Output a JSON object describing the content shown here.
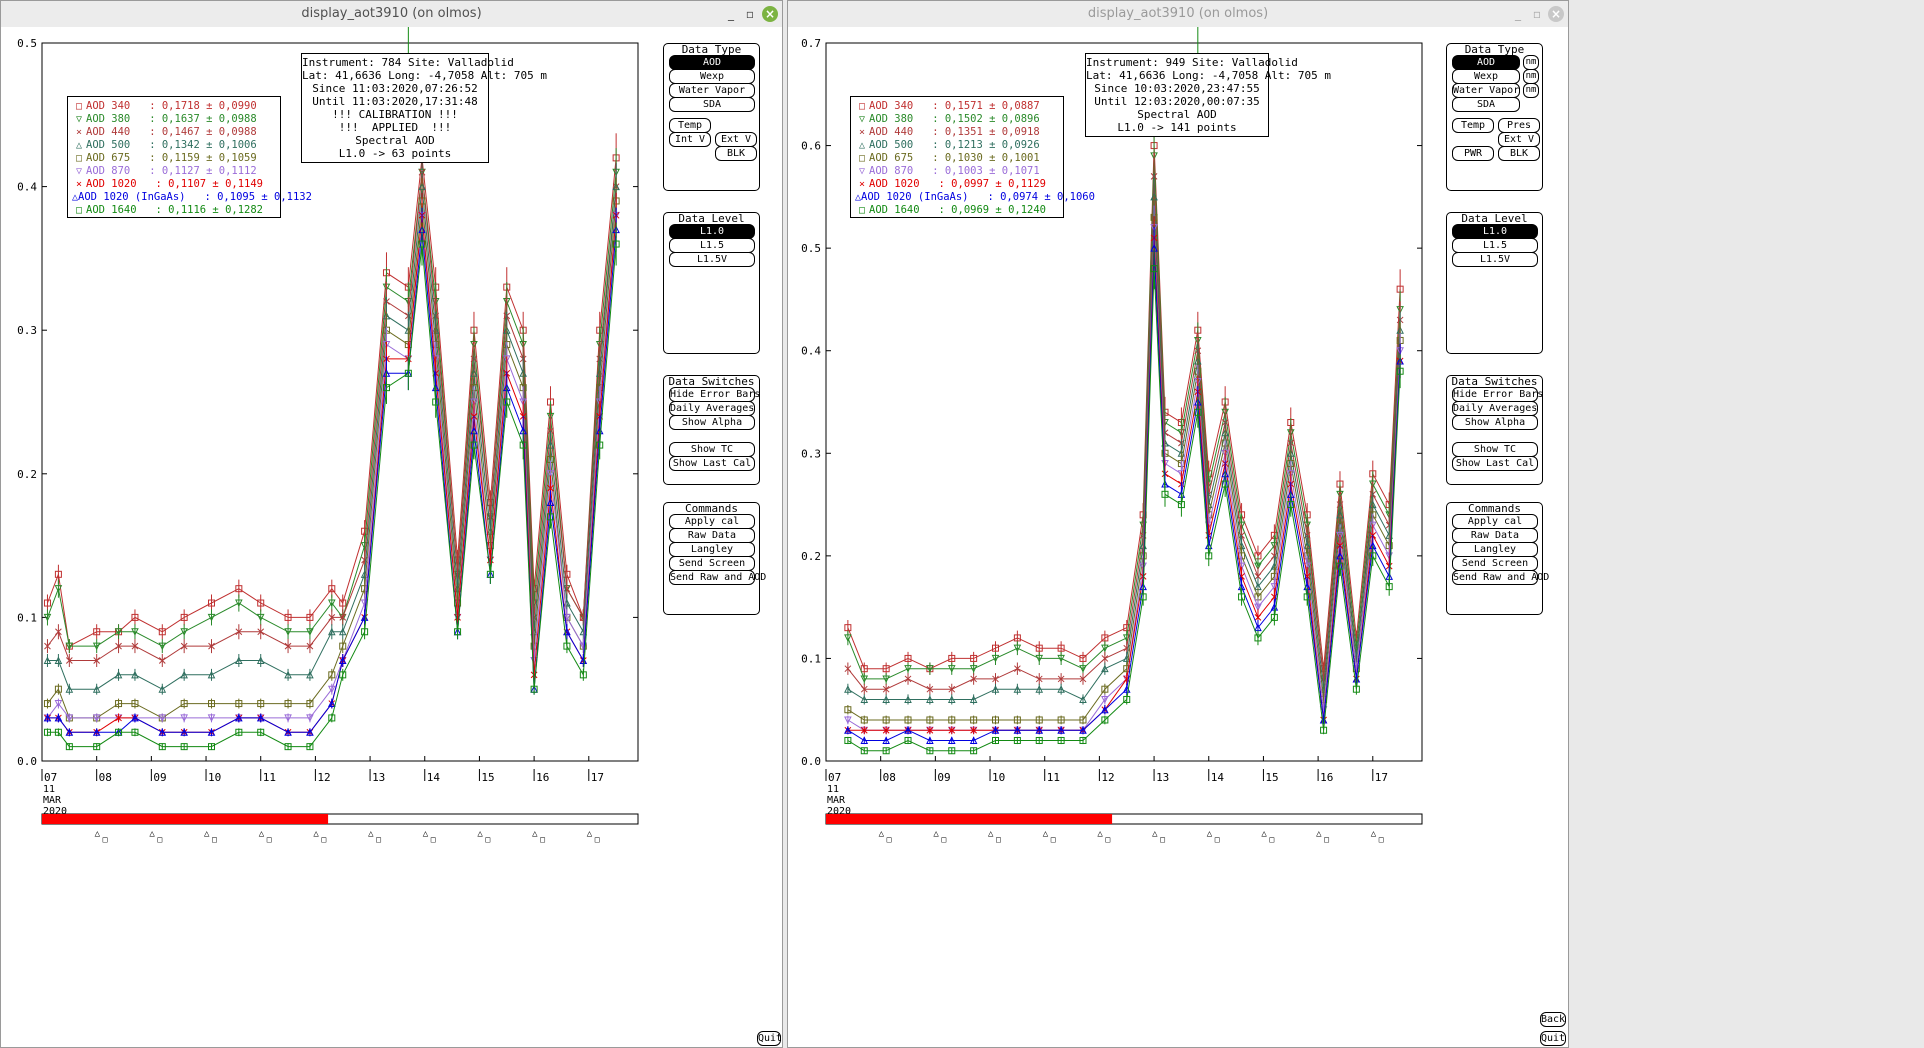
{
  "windows": [
    {
      "title": "display_aot3910 (on olmos)",
      "active": true,
      "info": [
        "Instrument: 784 Site: Valladolid",
        "Lat: 41,6636 Long: -4,7058 Alt: 705 m",
        "Since 11:03:2020,07:26:52",
        "Until 11:03:2020,17:31:48",
        "!!! CALIBRATION !!!",
        "!!!  APPLIED  !!!",
        "Spectral AOD",
        "L1.0 -> 63 points"
      ],
      "legend": [
        {
          "label": "AOD 340   : 0,1718 ± 0,0990",
          "color": "#c03030",
          "marker": "□"
        },
        {
          "label": "AOD 380   : 0,1637 ± 0,0988",
          "color": "#2a8a2a",
          "marker": "▽"
        },
        {
          "label": "AOD 440   : 0,1467 ± 0,0988",
          "color": "#b03a3a",
          "marker": "×"
        },
        {
          "label": "AOD 500   : 0,1342 ± 0,1006",
          "color": "#2f6f5f",
          "marker": "△"
        },
        {
          "label": "AOD 675   : 0,1159 ± 0,1059",
          "color": "#6b6b20",
          "marker": "□"
        },
        {
          "label": "AOD 870   : 0,1127 ± 0,1112",
          "color": "#9a6cd8",
          "marker": "▽"
        },
        {
          "label": "AOD 1020   : 0,1107 ± 0,1149",
          "color": "#e00000",
          "marker": "×"
        },
        {
          "label": "AOD 1020 (InGaAs)   : 0,1095 ± 0,1132",
          "color": "#0000e0",
          "marker": "△"
        },
        {
          "label": "AOD 1640   : 0,1116 ± 0,1282",
          "color": "#138a13",
          "marker": "□"
        }
      ],
      "y_ticks": [
        "0.0",
        "0.1",
        "0.2",
        "0.3",
        "0.4",
        "0.5"
      ],
      "x_ticks": [
        "07",
        "08",
        "09",
        "10",
        "11",
        "12",
        "13",
        "14",
        "15",
        "16",
        "17"
      ],
      "date_label": [
        "11",
        "MAR",
        "2020"
      ],
      "data_type": {
        "title": "Data Type",
        "buttons": [
          "AOD",
          "Wexp",
          "Water Vapor",
          "SDA",
          "Temp",
          "Int V",
          "Ext V",
          "BLK"
        ],
        "selected": "AOD"
      },
      "data_level": {
        "title": "Data Level",
        "buttons": [
          "L1.0",
          "L1.5",
          "L1.5V"
        ],
        "selected": "L1.0"
      },
      "data_switches": {
        "title": "Data Switches",
        "buttons": [
          "Hide Error Bars",
          "Daily Averages",
          "Show Alpha",
          "Show TC",
          "Show Last Cal"
        ]
      },
      "commands": {
        "title": "Commands",
        "buttons": [
          "Apply cal",
          "Raw Data",
          "Langley",
          "Send Screen",
          "Send Raw and AOD"
        ]
      },
      "quit_label": "Quit"
    },
    {
      "title": "display_aot3910 (on olmos)",
      "active": false,
      "info": [
        "Instrument: 949 Site: Valladolid",
        "Lat: 41,6636 Long: -4,7058 Alt: 705 m",
        "Since 10:03:2020,23:47:55",
        "Until 12:03:2020,00:07:35",
        "Spectral AOD",
        "L1.0 -> 141 points"
      ],
      "legend": [
        {
          "label": "AOD 340   : 0,1571 ± 0,0887",
          "color": "#c03030",
          "marker": "□"
        },
        {
          "label": "AOD 380   : 0,1502 ± 0,0896",
          "color": "#2a8a2a",
          "marker": "▽"
        },
        {
          "label": "AOD 440   : 0,1351 ± 0,0918",
          "color": "#b03a3a",
          "marker": "×"
        },
        {
          "label": "AOD 500   : 0,1213 ± 0,0926",
          "color": "#2f6f5f",
          "marker": "△"
        },
        {
          "label": "AOD 675   : 0,1030 ± 0,1001",
          "color": "#6b6b20",
          "marker": "□"
        },
        {
          "label": "AOD 870   : 0,1003 ± 0,1071",
          "color": "#9a6cd8",
          "marker": "▽"
        },
        {
          "label": "AOD 1020   : 0,0997 ± 0,1129",
          "color": "#e00000",
          "marker": "×"
        },
        {
          "label": "AOD 1020 (InGaAs)   : 0,0974 ± 0,1060",
          "color": "#0000e0",
          "marker": "△"
        },
        {
          "label": "AOD 1640   : 0,0969 ± 0,1240",
          "color": "#138a13",
          "marker": "□"
        }
      ],
      "y_ticks": [
        "0.0",
        "0.1",
        "0.2",
        "0.3",
        "0.4",
        "0.5",
        "0.6",
        "0.7"
      ],
      "x_ticks": [
        "07",
        "08",
        "09",
        "10",
        "11",
        "12",
        "13",
        "14",
        "15",
        "16",
        "17"
      ],
      "date_label": [
        "11",
        "MAR",
        "2020"
      ],
      "data_type": {
        "title": "Data Type",
        "buttons": [
          "AOD",
          "Wexp",
          "Water Vapor",
          "SDA",
          "Temp",
          "Pres",
          "Ext V",
          "PWR",
          "BLK"
        ],
        "side": [
          "nm",
          "nm",
          "nm"
        ],
        "selected": "AOD"
      },
      "data_level": {
        "title": "Data Level",
        "buttons": [
          "L1.0",
          "L1.5",
          "L1.5V"
        ],
        "selected": "L1.0"
      },
      "data_switches": {
        "title": "Data Switches",
        "buttons": [
          "Hide Error Bars",
          "Daily Averages",
          "Show Alpha",
          "Show TC",
          "Show Last Cal"
        ]
      },
      "commands": {
        "title": "Commands",
        "buttons": [
          "Apply cal",
          "Raw Data",
          "Langley",
          "Send Screen",
          "Send Raw and AOD"
        ]
      },
      "back_label": "Back",
      "quit_label": "Quit"
    }
  ],
  "chart_data": [
    {
      "type": "line",
      "ylim": [
        0,
        0.5
      ],
      "xlim": [
        7,
        17.9
      ],
      "x": [
        7.1,
        7.3,
        7.5,
        8.0,
        8.4,
        8.7,
        9.2,
        9.6,
        10.1,
        10.6,
        11.0,
        11.5,
        11.9,
        12.3,
        12.5,
        12.9,
        13.3,
        13.7,
        13.95,
        14.2,
        14.6,
        14.9,
        15.2,
        15.5,
        15.8,
        16.0,
        16.3,
        16.6,
        16.9,
        17.2,
        17.5
      ],
      "series": [
        {
          "name": "AOD 340",
          "values": [
            0.11,
            0.13,
            0.08,
            0.09,
            0.09,
            0.1,
            0.09,
            0.1,
            0.11,
            0.12,
            0.11,
            0.1,
            0.1,
            0.12,
            0.11,
            0.16,
            0.34,
            0.33,
            0.42,
            0.33,
            0.14,
            0.3,
            0.18,
            0.33,
            0.3,
            0.12,
            0.25,
            0.13,
            0.1,
            0.3,
            0.42
          ]
        },
        {
          "name": "AOD 380",
          "values": [
            0.1,
            0.12,
            0.08,
            0.08,
            0.09,
            0.09,
            0.08,
            0.09,
            0.1,
            0.11,
            0.1,
            0.09,
            0.09,
            0.11,
            0.1,
            0.15,
            0.33,
            0.32,
            0.41,
            0.32,
            0.13,
            0.29,
            0.17,
            0.32,
            0.29,
            0.11,
            0.24,
            0.12,
            0.1,
            0.29,
            0.41
          ]
        },
        {
          "name": "AOD 440",
          "values": [
            0.08,
            0.09,
            0.07,
            0.07,
            0.08,
            0.08,
            0.07,
            0.08,
            0.08,
            0.09,
            0.09,
            0.08,
            0.08,
            0.1,
            0.1,
            0.14,
            0.32,
            0.31,
            0.41,
            0.31,
            0.13,
            0.28,
            0.17,
            0.31,
            0.28,
            0.1,
            0.23,
            0.12,
            0.1,
            0.28,
            0.4
          ]
        },
        {
          "name": "AOD 500",
          "values": [
            0.07,
            0.07,
            0.05,
            0.05,
            0.06,
            0.06,
            0.05,
            0.06,
            0.06,
            0.07,
            0.07,
            0.06,
            0.06,
            0.09,
            0.09,
            0.13,
            0.31,
            0.3,
            0.4,
            0.3,
            0.12,
            0.27,
            0.16,
            0.3,
            0.27,
            0.09,
            0.22,
            0.11,
            0.09,
            0.27,
            0.4
          ]
        },
        {
          "name": "AOD 675",
          "values": [
            0.04,
            0.05,
            0.03,
            0.03,
            0.04,
            0.04,
            0.03,
            0.04,
            0.04,
            0.04,
            0.04,
            0.04,
            0.04,
            0.06,
            0.08,
            0.12,
            0.3,
            0.29,
            0.39,
            0.29,
            0.11,
            0.26,
            0.15,
            0.29,
            0.26,
            0.08,
            0.21,
            0.1,
            0.08,
            0.26,
            0.39
          ]
        },
        {
          "name": "AOD 870",
          "values": [
            0.03,
            0.04,
            0.03,
            0.03,
            0.03,
            0.03,
            0.03,
            0.03,
            0.03,
            0.03,
            0.03,
            0.03,
            0.03,
            0.05,
            0.07,
            0.11,
            0.29,
            0.28,
            0.38,
            0.28,
            0.1,
            0.25,
            0.14,
            0.28,
            0.25,
            0.07,
            0.2,
            0.1,
            0.08,
            0.25,
            0.38
          ]
        },
        {
          "name": "AOD 1020",
          "values": [
            0.03,
            0.03,
            0.02,
            0.02,
            0.03,
            0.03,
            0.02,
            0.02,
            0.02,
            0.03,
            0.03,
            0.02,
            0.02,
            0.04,
            0.07,
            0.1,
            0.28,
            0.28,
            0.38,
            0.27,
            0.1,
            0.24,
            0.14,
            0.27,
            0.24,
            0.06,
            0.19,
            0.09,
            0.07,
            0.24,
            0.38
          ]
        },
        {
          "name": "AOD 1020 (InGaAs)",
          "values": [
            0.03,
            0.03,
            0.02,
            0.02,
            0.02,
            0.03,
            0.02,
            0.02,
            0.02,
            0.03,
            0.03,
            0.02,
            0.02,
            0.04,
            0.07,
            0.1,
            0.27,
            0.27,
            0.37,
            0.26,
            0.09,
            0.23,
            0.13,
            0.26,
            0.23,
            0.05,
            0.18,
            0.09,
            0.07,
            0.23,
            0.37
          ]
        },
        {
          "name": "AOD 1640",
          "values": [
            0.02,
            0.02,
            0.01,
            0.01,
            0.02,
            0.02,
            0.01,
            0.01,
            0.01,
            0.02,
            0.02,
            0.01,
            0.01,
            0.03,
            0.06,
            0.09,
            0.26,
            0.27,
            0.36,
            0.25,
            0.09,
            0.22,
            0.13,
            0.25,
            0.22,
            0.05,
            0.17,
            0.08,
            0.06,
            0.22,
            0.36
          ]
        }
      ]
    },
    {
      "type": "line",
      "ylim": [
        0,
        0.7
      ],
      "xlim": [
        7,
        17.9
      ],
      "x": [
        7.4,
        7.7,
        8.1,
        8.5,
        8.9,
        9.3,
        9.7,
        10.1,
        10.5,
        10.9,
        11.3,
        11.7,
        12.1,
        12.5,
        12.8,
        13.0,
        13.2,
        13.5,
        13.8,
        14.0,
        14.3,
        14.6,
        14.9,
        15.2,
        15.5,
        15.8,
        16.1,
        16.4,
        16.7,
        17.0,
        17.3,
        17.5
      ],
      "series": [
        {
          "name": "AOD 340",
          "values": [
            0.13,
            0.09,
            0.09,
            0.1,
            0.09,
            0.1,
            0.1,
            0.11,
            0.12,
            0.11,
            0.11,
            0.1,
            0.12,
            0.13,
            0.24,
            0.6,
            0.34,
            0.33,
            0.42,
            0.28,
            0.35,
            0.24,
            0.2,
            0.22,
            0.33,
            0.24,
            0.09,
            0.27,
            0.12,
            0.28,
            0.25,
            0.46
          ]
        },
        {
          "name": "AOD 380",
          "values": [
            0.12,
            0.08,
            0.08,
            0.09,
            0.09,
            0.09,
            0.09,
            0.1,
            0.11,
            0.1,
            0.1,
            0.09,
            0.11,
            0.12,
            0.23,
            0.59,
            0.33,
            0.32,
            0.41,
            0.27,
            0.34,
            0.23,
            0.19,
            0.21,
            0.32,
            0.23,
            0.08,
            0.26,
            0.11,
            0.27,
            0.24,
            0.44
          ]
        },
        {
          "name": "AOD 440",
          "values": [
            0.09,
            0.07,
            0.07,
            0.08,
            0.07,
            0.07,
            0.08,
            0.08,
            0.09,
            0.08,
            0.08,
            0.08,
            0.1,
            0.11,
            0.22,
            0.57,
            0.32,
            0.31,
            0.4,
            0.26,
            0.33,
            0.22,
            0.18,
            0.2,
            0.31,
            0.22,
            0.08,
            0.25,
            0.1,
            0.26,
            0.23,
            0.43
          ]
        },
        {
          "name": "AOD 500",
          "values": [
            0.07,
            0.06,
            0.06,
            0.06,
            0.06,
            0.06,
            0.06,
            0.07,
            0.07,
            0.07,
            0.07,
            0.06,
            0.09,
            0.1,
            0.21,
            0.55,
            0.31,
            0.3,
            0.39,
            0.25,
            0.32,
            0.21,
            0.17,
            0.19,
            0.3,
            0.21,
            0.07,
            0.24,
            0.1,
            0.25,
            0.22,
            0.42
          ]
        },
        {
          "name": "AOD 675",
          "values": [
            0.05,
            0.04,
            0.04,
            0.04,
            0.04,
            0.04,
            0.04,
            0.04,
            0.04,
            0.04,
            0.04,
            0.04,
            0.07,
            0.09,
            0.2,
            0.53,
            0.3,
            0.29,
            0.38,
            0.24,
            0.31,
            0.2,
            0.16,
            0.18,
            0.29,
            0.2,
            0.06,
            0.23,
            0.09,
            0.24,
            0.21,
            0.41
          ]
        },
        {
          "name": "AOD 870",
          "values": [
            0.04,
            0.03,
            0.03,
            0.03,
            0.03,
            0.03,
            0.03,
            0.03,
            0.03,
            0.03,
            0.03,
            0.03,
            0.06,
            0.08,
            0.19,
            0.52,
            0.29,
            0.28,
            0.37,
            0.23,
            0.3,
            0.19,
            0.15,
            0.17,
            0.28,
            0.19,
            0.05,
            0.22,
            0.09,
            0.23,
            0.2,
            0.4
          ]
        },
        {
          "name": "AOD 1020",
          "values": [
            0.03,
            0.03,
            0.03,
            0.03,
            0.03,
            0.03,
            0.03,
            0.03,
            0.03,
            0.03,
            0.03,
            0.03,
            0.05,
            0.08,
            0.18,
            0.51,
            0.28,
            0.27,
            0.36,
            0.22,
            0.29,
            0.18,
            0.14,
            0.16,
            0.27,
            0.18,
            0.04,
            0.21,
            0.08,
            0.22,
            0.19,
            0.39
          ]
        },
        {
          "name": "AOD 1020 (InGaAs)",
          "values": [
            0.03,
            0.02,
            0.02,
            0.03,
            0.02,
            0.02,
            0.02,
            0.03,
            0.03,
            0.03,
            0.03,
            0.03,
            0.05,
            0.07,
            0.17,
            0.5,
            0.27,
            0.26,
            0.35,
            0.21,
            0.28,
            0.17,
            0.13,
            0.15,
            0.26,
            0.17,
            0.04,
            0.2,
            0.08,
            0.21,
            0.18,
            0.39
          ]
        },
        {
          "name": "AOD 1640",
          "values": [
            0.02,
            0.01,
            0.01,
            0.02,
            0.01,
            0.01,
            0.01,
            0.02,
            0.02,
            0.02,
            0.02,
            0.02,
            0.04,
            0.06,
            0.16,
            0.48,
            0.26,
            0.25,
            0.34,
            0.2,
            0.27,
            0.16,
            0.12,
            0.14,
            0.25,
            0.16,
            0.03,
            0.19,
            0.07,
            0.2,
            0.17,
            0.38
          ]
        }
      ]
    }
  ]
}
